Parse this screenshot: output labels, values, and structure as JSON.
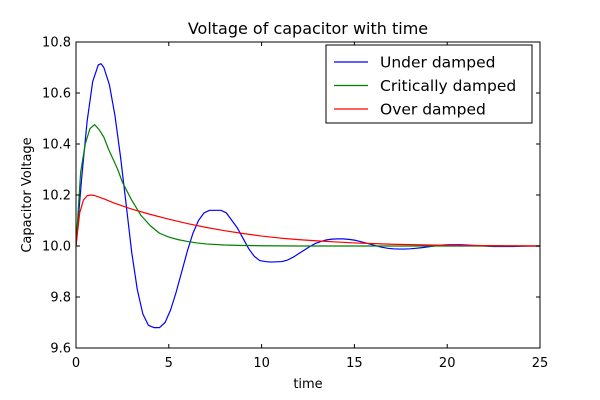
{
  "chart_data": {
    "type": "line",
    "title": "Voltage of capacitor with time",
    "xlabel": "time",
    "ylabel": "Capacitor Voltage",
    "xlim": [
      0,
      25
    ],
    "ylim": [
      9.6,
      10.8
    ],
    "xticks": [
      0,
      5,
      10,
      15,
      20,
      25
    ],
    "xtick_labels": [
      "0",
      "5",
      "10",
      "15",
      "20",
      "25"
    ],
    "yticks": [
      9.6,
      9.8,
      10.0,
      10.2,
      10.4,
      10.6,
      10.8
    ],
    "ytick_labels": [
      "9.6",
      "9.8",
      "10.0",
      "10.2",
      "10.4",
      "10.6",
      "10.8"
    ],
    "grid": false,
    "legend_position": "top-right",
    "series": [
      {
        "name": "Under damped",
        "color": "#0000ff",
        "x": [
          0,
          0.3,
          0.6,
          0.9,
          1.2,
          1.35,
          1.5,
          1.8,
          2.1,
          2.4,
          2.7,
          3.0,
          3.3,
          3.6,
          3.9,
          4.2,
          4.5,
          4.8,
          5.1,
          5.4,
          5.7,
          6.0,
          6.3,
          6.6,
          6.9,
          7.2,
          7.5,
          7.8,
          8.1,
          8.4,
          8.7,
          9.0,
          9.3,
          9.6,
          9.9,
          10.2,
          10.5,
          10.8,
          11.1,
          11.4,
          11.7,
          12.0,
          12.3,
          12.6,
          12.9,
          13.2,
          13.5,
          13.8,
          14.1,
          14.4,
          14.7,
          15.0,
          15.3,
          15.6,
          15.9,
          16.2,
          16.5,
          16.8,
          17.1,
          17.4,
          17.7,
          18.0,
          18.3,
          18.6,
          18.9,
          19.2,
          19.5,
          19.8,
          20.1,
          20.4,
          20.7,
          21.0,
          21.5,
          22.0,
          22.5,
          23.0,
          23.5,
          24.0,
          24.5,
          25.0
        ],
        "values": [
          10.0,
          10.262,
          10.49,
          10.645,
          10.71,
          10.715,
          10.7,
          10.632,
          10.511,
          10.349,
          10.164,
          9.976,
          9.83,
          9.734,
          9.689,
          9.68,
          9.68,
          9.7,
          9.75,
          9.82,
          9.9,
          9.98,
          10.05,
          10.1,
          10.13,
          10.14,
          10.14,
          10.14,
          10.13,
          10.1,
          10.07,
          10.03,
          9.99,
          9.96,
          9.943,
          9.939,
          9.937,
          9.938,
          9.939,
          9.945,
          9.956,
          9.97,
          9.984,
          9.998,
          10.01,
          10.018,
          10.024,
          10.027,
          10.028,
          10.028,
          10.026,
          10.023,
          10.018,
          10.012,
          10.006,
          10.0,
          9.995,
          9.991,
          9.989,
          9.988,
          9.988,
          9.989,
          9.991,
          9.993,
          9.996,
          9.999,
          10.002,
          10.004,
          10.005,
          10.005,
          10.005,
          10.004,
          10.002,
          10.0,
          9.998,
          9.998,
          9.998,
          9.999,
          10.0,
          10.0
        ]
      },
      {
        "name": "Critically damped",
        "color": "#008000",
        "x": [
          0,
          0.25,
          0.5,
          0.75,
          1.0,
          1.25,
          1.5,
          1.75,
          2.0,
          2.25,
          2.5,
          3.0,
          3.5,
          4.0,
          4.5,
          5.0,
          5.5,
          6.0,
          6.5,
          7.0,
          8.0,
          9.0,
          10.0,
          12.0,
          15.0,
          20.0,
          25.0
        ],
        "values": [
          10.0,
          10.29,
          10.4,
          10.46,
          10.476,
          10.456,
          10.427,
          10.38,
          10.34,
          10.3,
          10.25,
          10.18,
          10.12,
          10.08,
          10.05,
          10.035,
          10.025,
          10.018,
          10.012,
          10.008,
          10.004,
          10.002,
          10.001,
          10.0,
          10.0,
          10.0,
          10.0
        ]
      },
      {
        "name": "Over damped",
        "color": "#ff0000",
        "x": [
          0,
          0.2,
          0.4,
          0.6,
          0.8,
          1.0,
          1.5,
          2.0,
          2.5,
          3.0,
          4.0,
          5.0,
          6.0,
          7.0,
          8.0,
          9.0,
          10.0,
          11.0,
          12.0,
          13.0,
          14.0,
          15.0,
          17.0,
          19.0,
          21.0,
          23.0,
          25.0
        ],
        "values": [
          10.0,
          10.13,
          10.18,
          10.197,
          10.2,
          10.198,
          10.185,
          10.17,
          10.157,
          10.145,
          10.124,
          10.105,
          10.088,
          10.073,
          10.06,
          10.049,
          10.039,
          10.031,
          10.025,
          10.02,
          10.016,
          10.012,
          10.007,
          10.004,
          10.002,
          10.001,
          10.0
        ]
      }
    ]
  }
}
